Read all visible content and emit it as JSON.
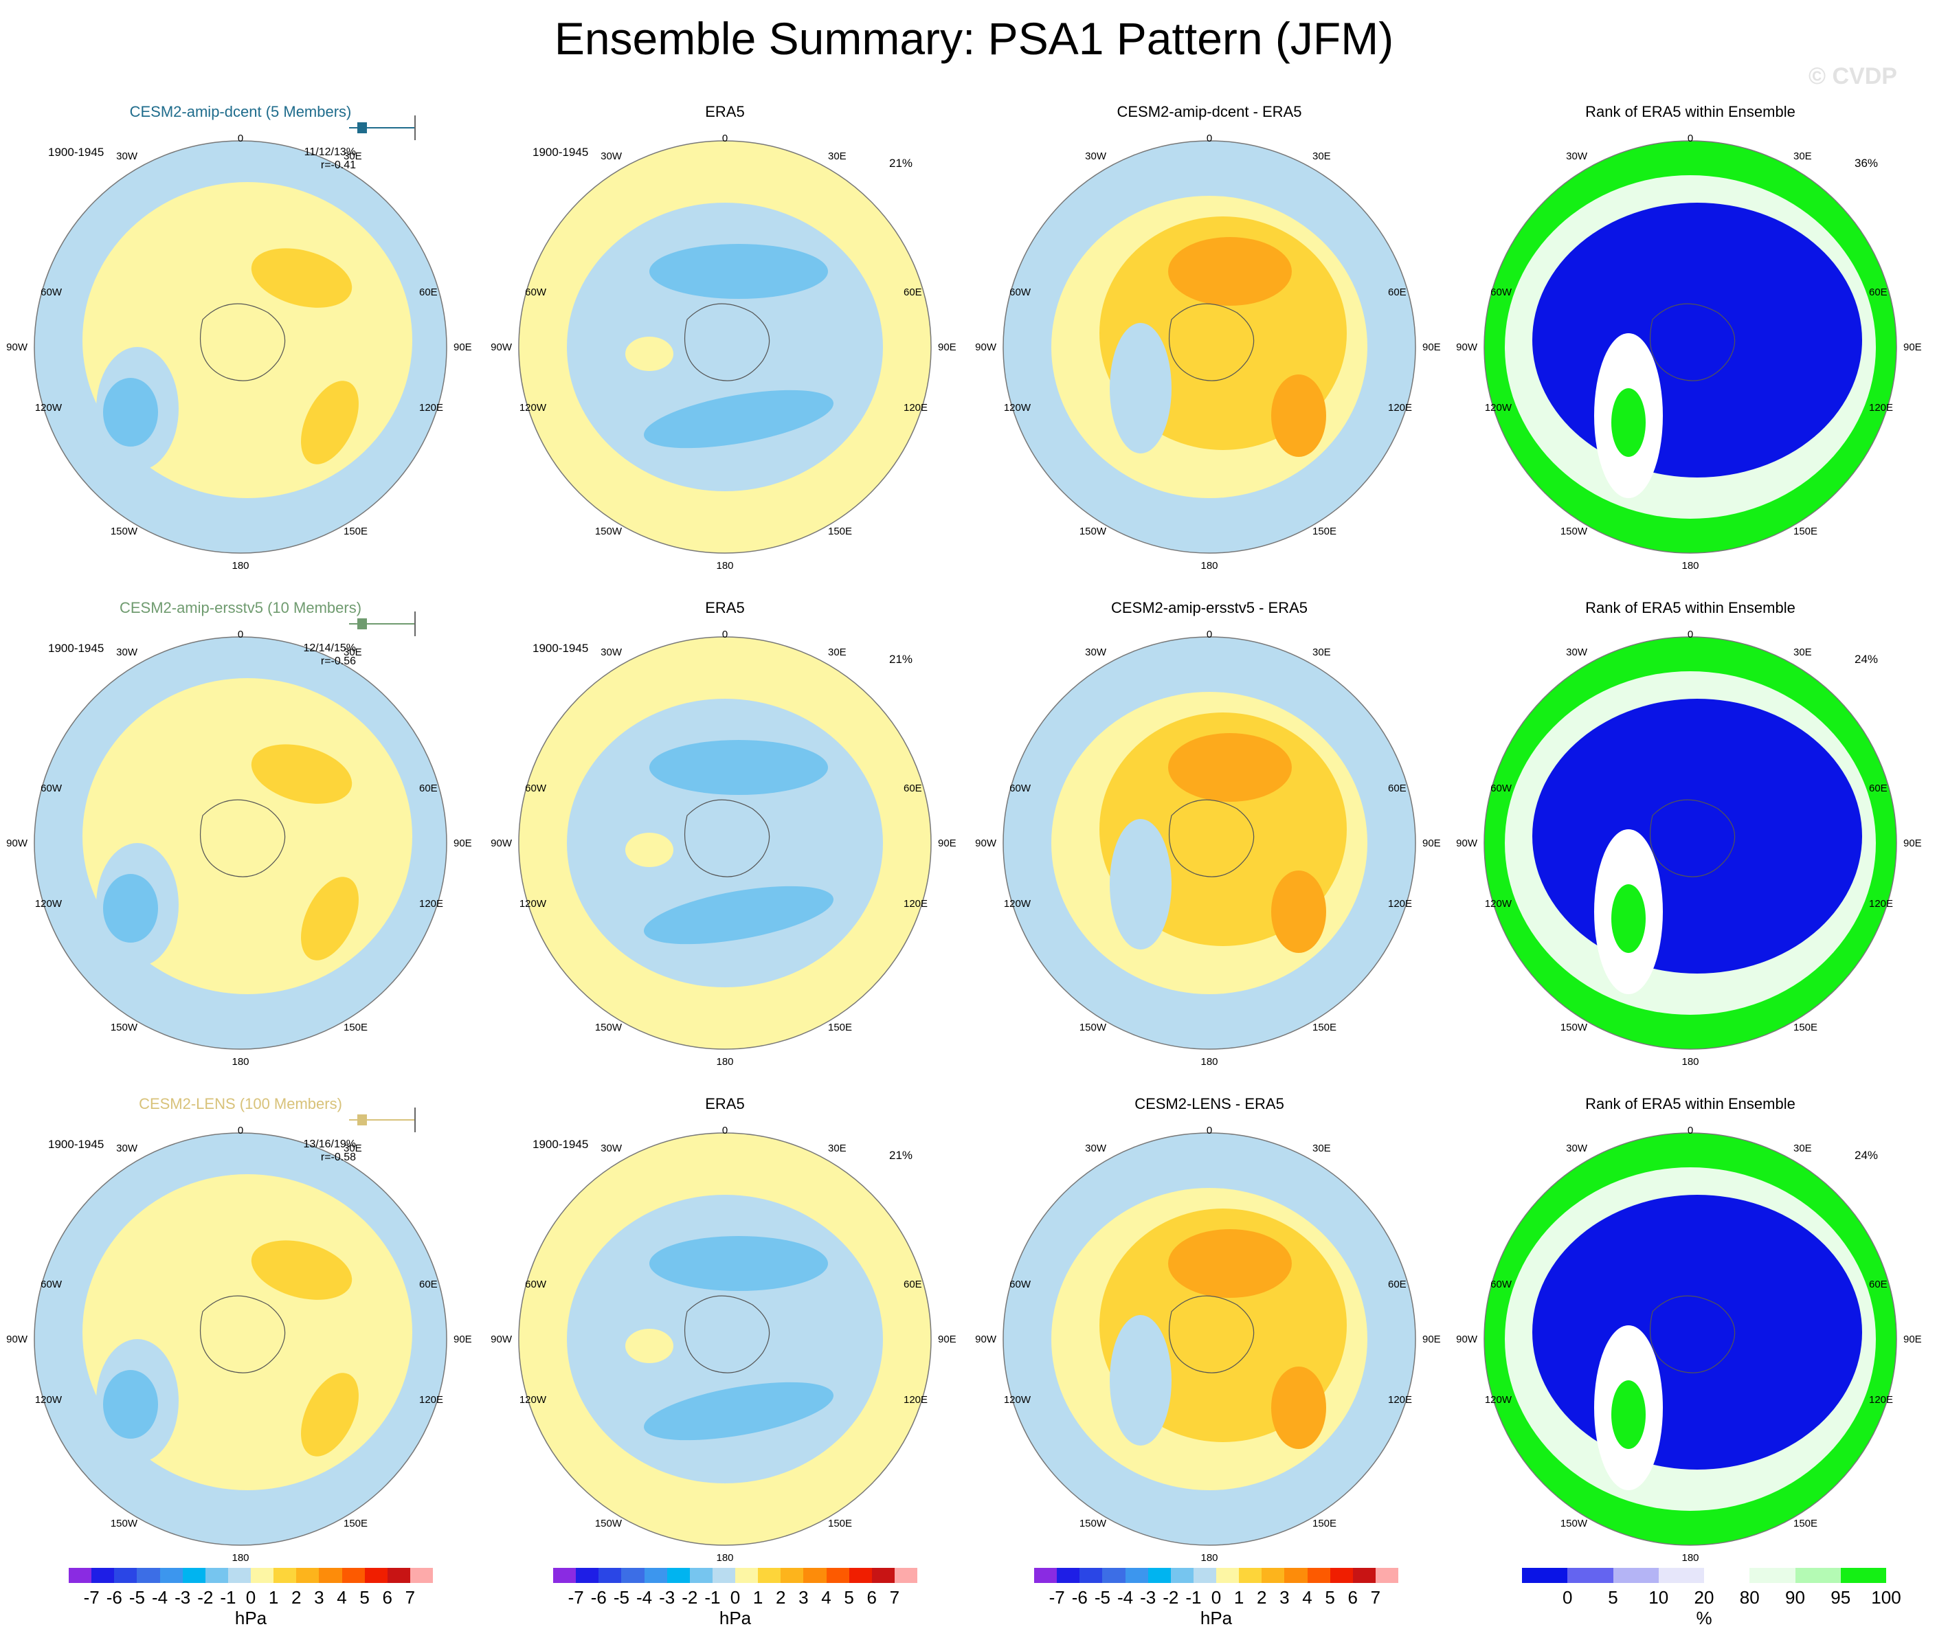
{
  "title": "Ensemble Summary: PSA1 Pattern (JFM)",
  "watermark": "© CVDP",
  "colors": {
    "ocean_blue_light": "#b9dcf0",
    "blue_mid": "#76c5ef",
    "yellow_light": "#fdf6a4",
    "yellow_mid": "#fdd53a",
    "orange": "#fdaa1c",
    "orange_dark": "#fd8a10",
    "rank_blue": "#0a14e6",
    "rank_green": "#14f014",
    "rank_light_green": "#e8fde8",
    "rank_white": "#ffffff"
  },
  "map_labels": {
    "top": "0",
    "bottom": "180",
    "upper_left": "30W",
    "upper_right": "30E",
    "left_upper": "60W",
    "right_upper": "60E",
    "left": "90W",
    "right": "90E",
    "left_lower": "120W",
    "right_lower": "120E",
    "lower_left": "150W",
    "lower_right": "150E"
  },
  "rows": [
    {
      "model": {
        "title": "CESM2-amip-dcent (5 Members)",
        "title_color": "#1f6c8c",
        "period": "1900-1945",
        "stats": "11/12/13%",
        "r": "r=-0.41"
      },
      "obs": {
        "title": "ERA5",
        "period": "1900-1945",
        "pct": "21%"
      },
      "diff": {
        "title": "CESM2-amip-dcent - ERA5"
      },
      "rank": {
        "title": "Rank of ERA5 within Ensemble",
        "pct": "36%"
      }
    },
    {
      "model": {
        "title": "CESM2-amip-ersstv5 (10 Members)",
        "title_color": "#6f9b6f",
        "period": "1900-1945",
        "stats": "12/14/15%",
        "r": "r=-0.56"
      },
      "obs": {
        "title": "ERA5",
        "period": "1900-1945",
        "pct": "21%"
      },
      "diff": {
        "title": "CESM2-amip-ersstv5 - ERA5"
      },
      "rank": {
        "title": "Rank of ERA5 within Ensemble",
        "pct": "24%"
      }
    },
    {
      "model": {
        "title": "CESM2-LENS (100 Members)",
        "title_color": "#d8c27a",
        "period": "1900-1945",
        "stats": "13/16/19%",
        "r": "r=-0.58"
      },
      "obs": {
        "title": "ERA5",
        "period": "1900-1945",
        "pct": "21%"
      },
      "diff": {
        "title": "CESM2-LENS - ERA5"
      },
      "rank": {
        "title": "Rank of ERA5 within Ensemble",
        "pct": "24%"
      }
    }
  ],
  "legend_hpa": {
    "unit": "hPa",
    "ticks": [
      "-7",
      "-6",
      "-5",
      "-4",
      "-3",
      "-2",
      "-1",
      "0",
      "1",
      "2",
      "3",
      "4",
      "5",
      "6",
      "7"
    ],
    "colors": [
      "#8a2be2",
      "#1e1ee6",
      "#2a46e6",
      "#3c6ee6",
      "#3c96ee",
      "#00b4f0",
      "#76c5ef",
      "#b9dcf0",
      "#fdf6a4",
      "#fdd53a",
      "#fdb41c",
      "#fd8c0a",
      "#fd5a00",
      "#f01e00",
      "#c81414",
      "#fdaaaa"
    ]
  },
  "legend_pct": {
    "unit": "%",
    "ticks": [
      "0",
      "5",
      "10",
      "20",
      "80",
      "90",
      "95",
      "100"
    ],
    "colors": [
      "#0a14e6",
      "#6464f0",
      "#b4b4f5",
      "#e6e6fa",
      "#ffffff",
      "#e8fde8",
      "#b4fab4",
      "#14f014"
    ]
  }
}
